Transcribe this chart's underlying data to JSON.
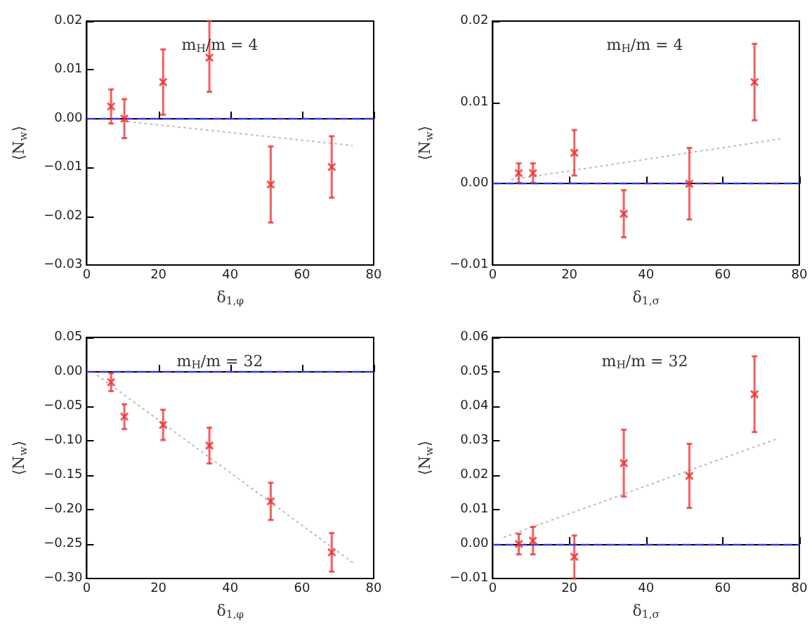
{
  "chart_data": [
    {
      "type": "scatter",
      "title": "m$_{H}$/m = 4",
      "xlabel": "δ$_{1,φ}$",
      "ylabel": "⟨N$_{w}$⟩",
      "xlim": [
        0,
        80
      ],
      "xticks": [
        0,
        20,
        40,
        60,
        80
      ],
      "ylim": [
        -0.03,
        0.02
      ],
      "yticks": [
        {
          "value": -0.03,
          "label": "−0.03"
        },
        {
          "value": -0.02,
          "label": "−0.02"
        },
        {
          "value": -0.01,
          "label": "−0.01"
        },
        {
          "value": 0,
          "label": "0.00"
        },
        {
          "value": 0.01,
          "label": "0.01"
        },
        {
          "value": 0.02,
          "label": "0.02"
        }
      ],
      "series": [
        {
          "type": "scatter",
          "marker": "cross",
          "color": "#ee2c2c",
          "x": [
            6.8,
            10.5,
            21.3,
            34.2,
            51.3,
            68.3
          ],
          "values": [
            0.0025,
            0.0,
            0.0075,
            0.0125,
            -0.0135,
            -0.0099
          ],
          "errors": [
            0.0035,
            0.004,
            0.0067,
            [
              0.0055,
              0.02
            ],
            0.0078,
            0.0063
          ]
        },
        {
          "type": "line",
          "marker": "none",
          "line_style": "dotted",
          "color": "#bbbbbb",
          "x": [
            10,
            74
          ],
          "values": [
            -0.0005,
            -0.0055
          ]
        }
      ],
      "ref_lines": [
        {
          "axis": "y",
          "value": 0,
          "color": "#3333ee",
          "line_style": "dashed"
        }
      ]
    },
    {
      "type": "scatter",
      "title": "m$_{H}$/m = 4",
      "xlabel": "δ$_{1,σ}$",
      "ylabel": "⟨N$_{w}$⟩",
      "xlim": [
        0,
        80
      ],
      "xticks": [
        0,
        20,
        40,
        60,
        80
      ],
      "ylim": [
        -0.01,
        0.02
      ],
      "yticks": [
        {
          "value": -0.01,
          "label": "−0.01"
        },
        {
          "value": 0,
          "label": "0.00"
        },
        {
          "value": 0.01,
          "label": "0.01"
        },
        {
          "value": 0.02,
          "label": "0.02"
        }
      ],
      "series": [
        {
          "type": "scatter",
          "marker": "cross",
          "color": "#ee2c2c",
          "x": [
            6.8,
            10.5,
            21.3,
            34.2,
            51.3,
            68.3
          ],
          "values": [
            0.0013,
            0.0013,
            0.0038,
            -0.0037,
            0.0,
            0.0125
          ],
          "errors": [
            0.0012,
            0.0012,
            0.0028,
            0.0029,
            0.0044,
            0.0047
          ]
        },
        {
          "type": "line",
          "marker": "none",
          "line_style": "dotted",
          "color": "#bbbbbb",
          "x": [
            5,
            75
          ],
          "values": [
            0.0005,
            0.0055
          ]
        }
      ],
      "ref_lines": [
        {
          "axis": "y",
          "value": 0,
          "color": "#3333ee",
          "line_style": "dashed"
        }
      ]
    },
    {
      "type": "scatter",
      "title": "m$_{H}$/m = 32",
      "xlabel": "δ$_{1,φ}$",
      "ylabel": "⟨N$_{w}$⟩",
      "xlim": [
        0,
        80
      ],
      "xticks": [
        0,
        20,
        40,
        60,
        80
      ],
      "ylim": [
        -0.3,
        0.05
      ],
      "yticks": [
        {
          "value": -0.3,
          "label": "−0.30"
        },
        {
          "value": -0.25,
          "label": "−0.25"
        },
        {
          "value": -0.2,
          "label": "−0.20"
        },
        {
          "value": -0.15,
          "label": "−0.15"
        },
        {
          "value": -0.1,
          "label": "−0.10"
        },
        {
          "value": -0.05,
          "label": "−0.05"
        },
        {
          "value": 0,
          "label": "0.00"
        },
        {
          "value": 0.05,
          "label": "0.05"
        }
      ],
      "series": [
        {
          "type": "scatter",
          "marker": "cross",
          "color": "#ee2c2c",
          "x": [
            6.8,
            10.5,
            21.3,
            34.2,
            51.3,
            68.3
          ],
          "values": [
            -0.015,
            -0.065,
            -0.077,
            -0.107,
            -0.188,
            -0.262
          ],
          "errors": [
            0.013,
            0.018,
            0.022,
            0.026,
            0.027,
            0.028
          ]
        },
        {
          "type": "line",
          "marker": "none",
          "line_style": "dotted",
          "color": "#bbbbbb",
          "x": [
            3,
            75
          ],
          "values": [
            -0.005,
            -0.28
          ]
        }
      ],
      "ref_lines": [
        {
          "axis": "y",
          "value": 0,
          "color": "#3333ee",
          "line_style": "dashed"
        }
      ]
    },
    {
      "type": "scatter",
      "title": "m$_{H}$/m = 32",
      "xlabel": "δ$_{1,σ}$",
      "ylabel": "⟨N$_{w}$⟩",
      "xlim": [
        0,
        80
      ],
      "xticks": [
        0,
        20,
        40,
        60,
        80
      ],
      "ylim": [
        -0.01,
        0.06
      ],
      "yticks": [
        {
          "value": -0.01,
          "label": "−0.01"
        },
        {
          "value": 0,
          "label": "0.00"
        },
        {
          "value": 0.01,
          "label": "0.01"
        },
        {
          "value": 0.02,
          "label": "0.02"
        },
        {
          "value": 0.03,
          "label": "0.03"
        },
        {
          "value": 0.04,
          "label": "0.04"
        },
        {
          "value": 0.05,
          "label": "0.05"
        },
        {
          "value": 0.06,
          "label": "0.06"
        }
      ],
      "series": [
        {
          "type": "scatter",
          "marker": "cross",
          "color": "#ee2c2c",
          "x": [
            6.8,
            10.5,
            21.3,
            34.2,
            51.3,
            68.3
          ],
          "values": [
            0.0,
            0.001,
            -0.0037,
            0.0235,
            0.0198,
            0.0435
          ],
          "errors": [
            0.003,
            0.004,
            [
              -0.01,
              0.0025
            ],
            0.0097,
            0.0093,
            0.011
          ]
        },
        {
          "type": "line",
          "marker": "none",
          "line_style": "dotted",
          "color": "#bbbbbb",
          "x": [
            3,
            74
          ],
          "values": [
            0.002,
            0.0305
          ]
        }
      ],
      "ref_lines": [
        {
          "axis": "y",
          "value": 0,
          "color": "#3333ee",
          "line_style": "dashed"
        }
      ]
    }
  ]
}
